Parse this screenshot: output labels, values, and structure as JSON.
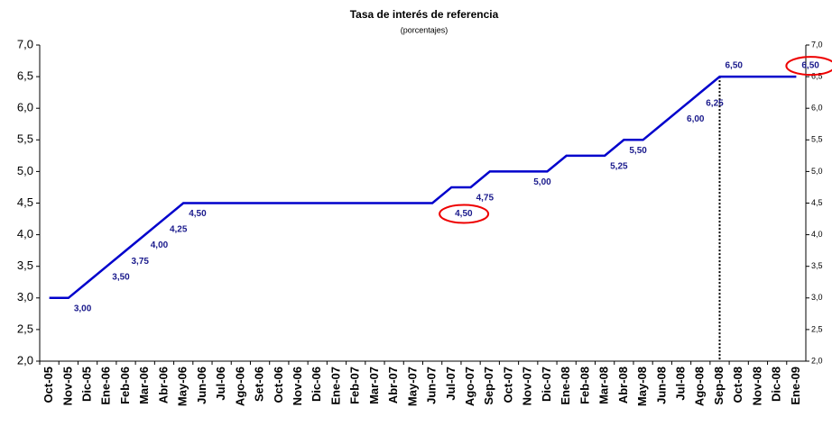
{
  "chart_data": {
    "type": "line",
    "title": "Tasa de interés de referencia",
    "subtitle": "(porcentajes)",
    "categories": [
      "Oct-05",
      "Nov-05",
      "Dic-05",
      "Ene-06",
      "Feb-06",
      "Mar-06",
      "Abr-06",
      "May-06",
      "Jun-06",
      "Jul-06",
      "Ago-06",
      "Set-06",
      "Oct-06",
      "Nov-06",
      "Dic-06",
      "Ene-07",
      "Feb-07",
      "Mar-07",
      "Abr-07",
      "May-07",
      "Jun-07",
      "Jul-07",
      "Ago-07",
      "Sep-07",
      "Oct-07",
      "Nov-07",
      "Dic-07",
      "Ene-08",
      "Feb-08",
      "Mar-08",
      "Abr-08",
      "May-08",
      "Jun-08",
      "Jul-08",
      "Ago-08",
      "Sep-08",
      "Oct-08",
      "Nov-08",
      "Dic-08",
      "Ene-09"
    ],
    "series": [
      {
        "color": "#0000cc",
        "values": [
          3.0,
          3.0,
          3.25,
          3.5,
          3.75,
          4.0,
          4.25,
          4.5,
          4.5,
          4.5,
          4.5,
          4.5,
          4.5,
          4.5,
          4.5,
          4.5,
          4.5,
          4.5,
          4.5,
          4.5,
          4.5,
          4.75,
          4.75,
          5.0,
          5.0,
          5.0,
          5.0,
          5.25,
          5.25,
          5.25,
          5.5,
          5.5,
          5.75,
          6.0,
          6.25,
          6.5,
          6.5,
          6.5,
          6.5,
          6.5
        ],
        "value_labels": [
          null,
          "3,00",
          null,
          "3,50",
          "3,75",
          "4,00",
          "4,25",
          "4,50",
          null,
          null,
          null,
          null,
          null,
          null,
          null,
          null,
          null,
          null,
          null,
          null,
          "4,50",
          null,
          "4,75",
          null,
          null,
          "5,00",
          null,
          null,
          null,
          "5,25",
          "5,50",
          null,
          null,
          "6,00",
          "6,25",
          "6,50",
          null,
          null,
          null,
          "6,50"
        ]
      }
    ],
    "ylim": [
      2.0,
      7.0
    ],
    "yticks": [
      {
        "value": 2.0,
        "label": "2,0"
      },
      {
        "value": 2.5,
        "label": "2,5"
      },
      {
        "value": 3.0,
        "label": "3,0"
      },
      {
        "value": 3.5,
        "label": "3,5"
      },
      {
        "value": 4.0,
        "label": "4,0"
      },
      {
        "value": 4.5,
        "label": "4,5"
      },
      {
        "value": 5.0,
        "label": "5,0"
      },
      {
        "value": 5.5,
        "label": "5,5"
      },
      {
        "value": 6.0,
        "label": "6,0"
      },
      {
        "value": 6.5,
        "label": "6,5"
      },
      {
        "value": 7.0,
        "label": "7,0"
      }
    ],
    "y2lim": [
      2.0,
      7.0
    ],
    "y2ticks": [
      {
        "value": 2.0,
        "label": "2,0"
      },
      {
        "value": 2.5,
        "label": "2,5"
      },
      {
        "value": 3.0,
        "label": "3,0"
      },
      {
        "value": 3.5,
        "label": "3,5"
      },
      {
        "value": 4.0,
        "label": "4,0"
      },
      {
        "value": 4.5,
        "label": "4,5"
      },
      {
        "value": 5.0,
        "label": "5,0"
      },
      {
        "value": 5.5,
        "label": "5,5"
      },
      {
        "value": 6.0,
        "label": "6,0"
      },
      {
        "value": 6.5,
        "label": "6,5"
      },
      {
        "value": 7.0,
        "label": "7,0"
      }
    ],
    "reference_line": "Sep-08",
    "circled": [
      "Jun-07",
      "Ene-09"
    ]
  }
}
